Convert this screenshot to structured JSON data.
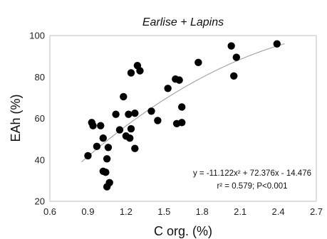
{
  "chart_data": {
    "type": "scatter",
    "title": "Earlise + Lapins",
    "xlabel": "C org. (%)",
    "ylabel": "EAh (%)",
    "xlim": [
      0.6,
      2.7
    ],
    "ylim": [
      20,
      100
    ],
    "xticks": [
      "0.6",
      "0.9",
      "1.2",
      "1.5",
      "1.8",
      "2.1",
      "2.4",
      "2.7"
    ],
    "yticks": [
      "20",
      "40",
      "60",
      "80",
      "100"
    ],
    "grid": false,
    "legend": "none",
    "marker_color": "#000000",
    "trendline_color": "#a6a6a6",
    "series": [
      {
        "points": [
          [
            0.9,
            42
          ],
          [
            0.93,
            58
          ],
          [
            0.94,
            56.5
          ],
          [
            0.97,
            46.5
          ],
          [
            1.0,
            56.5
          ],
          [
            1.02,
            50.5
          ],
          [
            1.02,
            34.5
          ],
          [
            1.04,
            34
          ],
          [
            1.05,
            40.5
          ],
          [
            1.05,
            27
          ],
          [
            1.06,
            46
          ],
          [
            1.07,
            29
          ],
          [
            1.12,
            62
          ],
          [
            1.15,
            54.5
          ],
          [
            1.18,
            70.5
          ],
          [
            1.2,
            51.5
          ],
          [
            1.22,
            62
          ],
          [
            1.23,
            50.5
          ],
          [
            1.24,
            55
          ],
          [
            1.24,
            82
          ],
          [
            1.27,
            62.5
          ],
          [
            1.27,
            45.5
          ],
          [
            1.29,
            85.5
          ],
          [
            1.31,
            83
          ],
          [
            1.4,
            63.5
          ],
          [
            1.45,
            59
          ],
          [
            1.53,
            74.5
          ],
          [
            1.59,
            79
          ],
          [
            1.6,
            57.5
          ],
          [
            1.62,
            78.5
          ],
          [
            1.64,
            65.5
          ],
          [
            1.64,
            58
          ],
          [
            1.77,
            87
          ],
          [
            2.03,
            95
          ],
          [
            2.05,
            80.5
          ],
          [
            2.07,
            89.5
          ],
          [
            2.39,
            96
          ]
        ]
      }
    ],
    "trendline": {
      "type": "polynomial",
      "a": -11.122,
      "b": 72.376,
      "c": -14.476,
      "x_range": [
        0.85,
        2.45
      ]
    },
    "annotations": {
      "equation": "y = -11.122x² + 72.376x - 14.476",
      "r_squared": "r² = 0.579; P<0.001"
    }
  }
}
